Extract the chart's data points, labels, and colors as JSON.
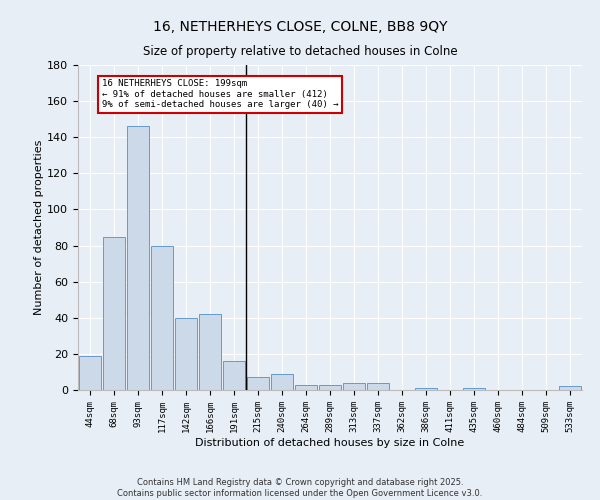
{
  "title": "16, NETHERHEYS CLOSE, COLNE, BB8 9QY",
  "subtitle": "Size of property relative to detached houses in Colne",
  "xlabel": "Distribution of detached houses by size in Colne",
  "ylabel": "Number of detached properties",
  "categories": [
    "44sqm",
    "68sqm",
    "93sqm",
    "117sqm",
    "142sqm",
    "166sqm",
    "191sqm",
    "215sqm",
    "240sqm",
    "264sqm",
    "289sqm",
    "313sqm",
    "337sqm",
    "362sqm",
    "386sqm",
    "411sqm",
    "435sqm",
    "460sqm",
    "484sqm",
    "509sqm",
    "533sqm"
  ],
  "values": [
    19,
    85,
    146,
    80,
    40,
    42,
    16,
    7,
    9,
    3,
    3,
    4,
    4,
    0,
    1,
    0,
    1,
    0,
    0,
    0,
    2
  ],
  "bar_color": "#ccd9e8",
  "bar_edge_color": "#6699cc",
  "property_line_index": 6,
  "annotation_text": "16 NETHERHEYS CLOSE: 199sqm\n← 91% of detached houses are smaller (412)\n9% of semi-detached houses are larger (40) →",
  "annotation_box_color": "#ffffff",
  "annotation_border_color": "#cc0000",
  "ylim": [
    0,
    180
  ],
  "yticks": [
    0,
    20,
    40,
    60,
    80,
    100,
    120,
    140,
    160,
    180
  ],
  "bg_color": "#e8eef5",
  "grid_color": "#ffffff",
  "footer_line1": "Contains HM Land Registry data © Crown copyright and database right 2025.",
  "footer_line2": "Contains public sector information licensed under the Open Government Licence v3.0."
}
